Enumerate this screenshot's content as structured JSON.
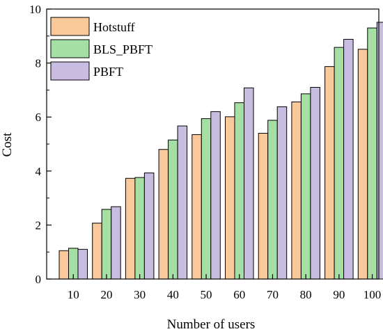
{
  "chart_data": {
    "type": "bar",
    "xlabel": "Number of users",
    "ylabel": "Cost",
    "ylim": [
      0,
      10
    ],
    "yticks": [
      0,
      2,
      4,
      6,
      8,
      10
    ],
    "grid": false,
    "legend_position": "top-left",
    "categories": [
      "10",
      "20",
      "30",
      "40",
      "50",
      "60",
      "70",
      "80",
      "90",
      "100"
    ],
    "series": [
      {
        "name": "Hotstuff",
        "color": "#f9c89b",
        "values": [
          1.05,
          2.07,
          3.73,
          4.8,
          5.35,
          6.01,
          5.4,
          6.56,
          7.87,
          8.51
        ]
      },
      {
        "name": "BLS_PBFT",
        "color": "#a6dfa4",
        "values": [
          1.14,
          2.58,
          3.76,
          5.15,
          5.94,
          6.53,
          5.88,
          6.86,
          8.58,
          9.3
        ]
      },
      {
        "name": "PBFT",
        "color": "#c8bce1",
        "values": [
          1.1,
          2.68,
          3.93,
          5.67,
          6.2,
          7.08,
          6.38,
          7.1,
          8.88,
          9.51
        ]
      }
    ]
  }
}
